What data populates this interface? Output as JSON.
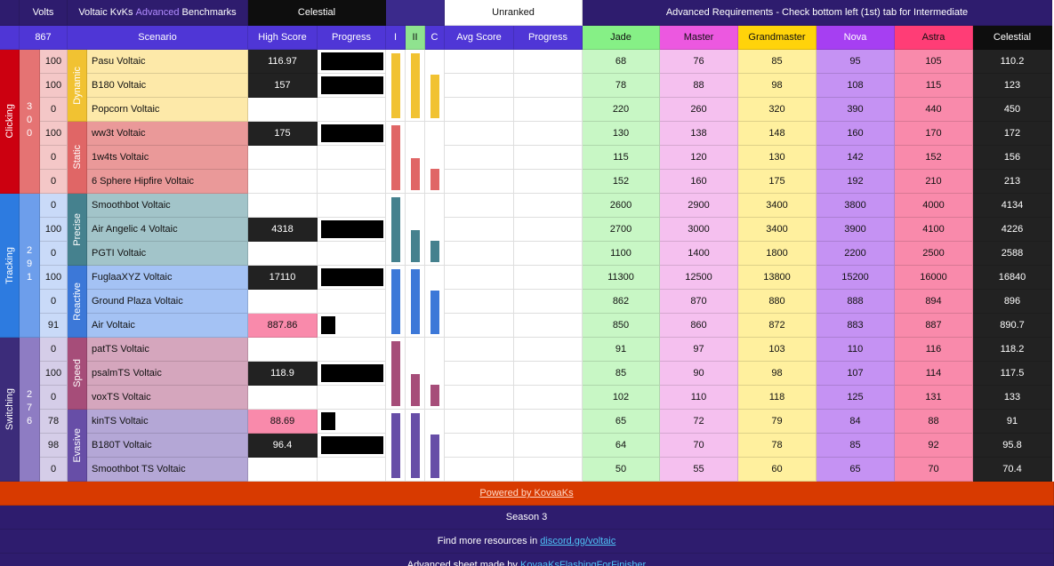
{
  "header": {
    "volts_label": "Volts",
    "title_prefix": "Voltaic KvKs ",
    "title_highlight": "Advanced",
    "title_suffix": " Benchmarks",
    "overall_rank": "Celestial",
    "avg_rank": "Unranked",
    "requirements_note": "Advanced Requirements - Check bottom left (1st) tab for Intermediate",
    "total_volts": 867,
    "columns": {
      "scenario": "Scenario",
      "high_score": "High Score",
      "progress": "Progress",
      "level_1": "I",
      "level_2": "II",
      "level_3": "C",
      "avg_score": "Avg Score",
      "avg_progress": "Progress"
    },
    "ranks": [
      {
        "name": "Jade",
        "color": "#86f086",
        "cell_color": "#c8f7c5"
      },
      {
        "name": "Master",
        "color": "#ec58e0",
        "cell_color": "#f5c0ef"
      },
      {
        "name": "Grandmaster",
        "color": "#ffd30a",
        "cell_color": "#fff09e"
      },
      {
        "name": "Nova",
        "color": "#a63ff2",
        "cell_color": "#c592f3"
      },
      {
        "name": "Astra",
        "color": "#ff3d76",
        "cell_color": "#f98aab"
      },
      {
        "name": "Celestial",
        "color": "#0e0e0e",
        "cell_color": "#222222"
      }
    ]
  },
  "categories": [
    {
      "name": "Clicking",
      "volts": 300,
      "color": "#cc0010",
      "volts_color": "#e57373",
      "row_color": "#f4c7c7",
      "subcategories": [
        {
          "name": "Dynamic",
          "color": "#f1c232",
          "bg": "#fde9a9",
          "levels": [
            100,
            100,
            67
          ],
          "scenarios": [
            {
              "volts": 100,
              "name": "Pasu Voltaic",
              "high_score": 116.97,
              "progress": 100,
              "requirements": [
                68,
                76,
                85,
                95,
                105,
                110.2
              ]
            },
            {
              "volts": 100,
              "name": "B180 Voltaic",
              "high_score": 157,
              "progress": 100,
              "requirements": [
                78,
                88,
                98,
                108,
                115,
                123
              ]
            },
            {
              "volts": 0,
              "name": "Popcorn Voltaic",
              "high_score": null,
              "progress": null,
              "requirements": [
                220,
                260,
                320,
                390,
                440,
                450
              ]
            }
          ]
        },
        {
          "name": "Static",
          "color": "#e06666",
          "bg": "#ea9999",
          "levels": [
            100,
            50,
            33
          ],
          "scenarios": [
            {
              "volts": 100,
              "name": "ww3t Voltaic",
              "high_score": 175,
              "progress": 100,
              "requirements": [
                130,
                138,
                148,
                160,
                170,
                172
              ]
            },
            {
              "volts": 0,
              "name": "1w4ts Voltaic",
              "high_score": null,
              "progress": null,
              "requirements": [
                115,
                120,
                130,
                142,
                152,
                156
              ]
            },
            {
              "volts": 0,
              "name": "6 Sphere Hipfire Voltaic",
              "high_score": null,
              "progress": null,
              "requirements": [
                152,
                160,
                175,
                192,
                210,
                213
              ]
            }
          ]
        }
      ]
    },
    {
      "name": "Tracking",
      "volts": 291,
      "color": "#2d7be0",
      "volts_color": "#6d9eeb",
      "row_color": "#c9daf8",
      "subcategories": [
        {
          "name": "Precise",
          "color": "#45818e",
          "bg": "#a2c4c9",
          "levels": [
            100,
            50,
            33
          ],
          "scenarios": [
            {
              "volts": 0,
              "name": "Smoothbot Voltaic",
              "high_score": null,
              "progress": null,
              "requirements": [
                2600,
                2900,
                3400,
                3800,
                4000,
                4134
              ]
            },
            {
              "volts": 100,
              "name": "Air Angelic 4 Voltaic",
              "high_score": 4318,
              "progress": 100,
              "requirements": [
                2700,
                3000,
                3400,
                3900,
                4100,
                4226
              ]
            },
            {
              "volts": 0,
              "name": "PGTI Voltaic",
              "high_score": null,
              "progress": null,
              "requirements": [
                1100,
                1400,
                1800,
                2200,
                2500,
                2588
              ]
            }
          ]
        },
        {
          "name": "Reactive",
          "color": "#3c78d8",
          "bg": "#a4c2f4",
          "levels": [
            100,
            100,
            67
          ],
          "scenarios": [
            {
              "volts": 100,
              "name": "FuglaaXYZ Voltaic",
              "high_score": 17110,
              "progress": 100,
              "requirements": [
                11300,
                12500,
                13800,
                15200,
                16000,
                16840
              ]
            },
            {
              "volts": 0,
              "name": "Ground Plaza Voltaic",
              "high_score": null,
              "progress": null,
              "requirements": [
                862,
                870,
                880,
                888,
                894,
                896
              ]
            },
            {
              "volts": 91,
              "name": "Air Voltaic",
              "high_score": 887.86,
              "progress": 23,
              "requirements": [
                850,
                860,
                872,
                883,
                887,
                890.7
              ]
            }
          ]
        }
      ]
    },
    {
      "name": "Switching",
      "volts": 276,
      "color": "#3c2c7a",
      "volts_color": "#8e7cc3",
      "row_color": "#d5cde8",
      "subcategories": [
        {
          "name": "Speed",
          "color": "#a64d79",
          "bg": "#d5a6bd",
          "levels": [
            100,
            50,
            33
          ],
          "scenarios": [
            {
              "volts": 0,
              "name": "patTS Voltaic",
              "high_score": null,
              "progress": null,
              "requirements": [
                91,
                97,
                103,
                110,
                116,
                118.2
              ]
            },
            {
              "volts": 100,
              "name": "psalmTS Voltaic",
              "high_score": 118.9,
              "progress": 100,
              "requirements": [
                85,
                90,
                98,
                107,
                114,
                117.5
              ]
            },
            {
              "volts": 0,
              "name": "voxTS Voltaic",
              "high_score": null,
              "progress": null,
              "requirements": [
                102,
                110,
                118,
                125,
                131,
                133
              ]
            }
          ]
        },
        {
          "name": "Evasive",
          "color": "#674ea7",
          "bg": "#b4a7d6",
          "levels": [
            100,
            100,
            67
          ],
          "scenarios": [
            {
              "volts": 78,
              "name": "kinTS Voltaic",
              "high_score": 88.69,
              "progress": 23,
              "requirements": [
                65,
                72,
                79,
                84,
                88,
                91
              ]
            },
            {
              "volts": 98,
              "name": "B180T Voltaic",
              "high_score": 96.4,
              "progress": 100,
              "requirements": [
                64,
                70,
                78,
                85,
                92,
                95.8
              ]
            },
            {
              "volts": 0,
              "name": "Smoothbot TS Voltaic",
              "high_score": null,
              "progress": null,
              "requirements": [
                50,
                55,
                60,
                65,
                70,
                70.4
              ]
            }
          ]
        }
      ]
    }
  ],
  "footer": {
    "powered_by": "Powered by KovaaKs",
    "season": "Season 3",
    "resources_prefix": "Find more resources in ",
    "resources_link": "discord.gg/voltaic",
    "credit_prefix": "Advanced sheet made by ",
    "credit_link": "KovaaKsFlashingForFinisher"
  }
}
